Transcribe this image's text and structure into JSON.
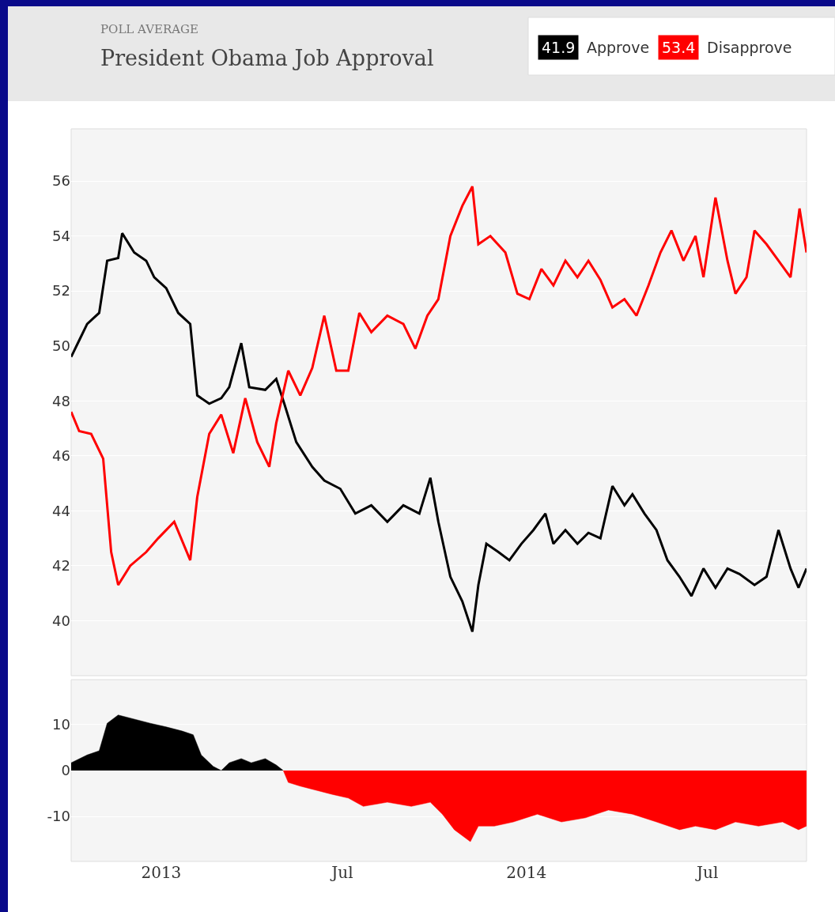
{
  "chart_data": [
    {
      "type": "line",
      "title": "President Obama Job Approval",
      "subtitle": "POLL AVERAGE",
      "annotations": [
        "41.9",
        "53.4"
      ],
      "legend": "top right",
      "grid": "y",
      "tick_labels": "y",
      "xlim": [
        "2012-10-03",
        "2014-10-08"
      ],
      "ylim": [
        38,
        57.9
      ],
      "yticks": [
        40,
        42,
        44,
        46,
        48,
        50,
        52,
        54,
        56
      ],
      "series": [
        {
          "name": "Approve",
          "color": "#000000",
          "x": [
            "2012-10-03",
            "2012-10-11",
            "2012-10-19",
            "2012-10-31",
            "2012-11-08",
            "2012-11-19",
            "2012-11-23",
            "2012-12-05",
            "2012-12-17",
            "2012-12-25",
            "2013-01-06",
            "2013-01-18",
            "2013-01-30",
            "2013-02-06",
            "2013-02-18",
            "2013-03-02",
            "2013-03-10",
            "2013-03-22",
            "2013-03-30",
            "2013-04-15",
            "2013-04-26",
            "2013-05-04",
            "2013-05-16",
            "2013-06-01",
            "2013-06-13",
            "2013-06-29",
            "2013-07-14",
            "2013-07-30",
            "2013-08-15",
            "2013-08-31",
            "2013-09-16",
            "2013-09-27",
            "2013-10-05",
            "2013-10-17",
            "2013-10-29",
            "2013-11-08",
            "2013-11-14",
            "2013-11-22",
            "2013-12-04",
            "2013-12-15",
            "2013-12-27",
            "2014-01-08",
            "2014-01-20",
            "2014-01-28",
            "2014-02-09",
            "2014-02-21",
            "2014-03-04",
            "2014-03-16",
            "2014-03-28",
            "2014-04-09",
            "2014-04-17",
            "2014-04-29",
            "2014-05-11",
            "2014-05-22",
            "2014-06-03",
            "2014-06-15",
            "2014-06-27",
            "2014-07-09",
            "2014-07-21",
            "2014-08-02",
            "2014-08-17",
            "2014-08-29",
            "2014-09-10",
            "2014-09-22",
            "2014-09-30",
            "2014-10-08"
          ],
          "values": [
            49.6,
            50.2,
            50.8,
            51.2,
            53.1,
            53.2,
            54.1,
            53.4,
            53.1,
            52.5,
            52.1,
            51.2,
            50.8,
            48.2,
            47.9,
            48.1,
            48.5,
            50.1,
            48.5,
            48.4,
            48.8,
            47.9,
            46.5,
            45.6,
            45.1,
            44.8,
            43.9,
            44.2,
            43.6,
            44.2,
            43.9,
            45.2,
            43.6,
            41.6,
            40.7,
            39.6,
            41.3,
            42.8,
            42.5,
            42.2,
            42.8,
            43.3,
            43.9,
            42.8,
            43.3,
            42.8,
            43.2,
            43.0,
            44.9,
            44.2,
            44.6,
            43.9,
            43.3,
            42.2,
            41.6,
            40.9,
            41.9,
            41.2,
            41.9,
            41.7,
            41.3,
            41.6,
            43.3,
            41.9,
            41.2,
            41.9
          ]
        },
        {
          "name": "Disapprove",
          "color": "#ff0000",
          "x": [
            "2012-10-03",
            "2012-10-11",
            "2012-10-23",
            "2012-11-04",
            "2012-11-12",
            "2012-11-19",
            "2012-12-01",
            "2012-12-17",
            "2012-12-29",
            "2013-01-14",
            "2013-01-30",
            "2013-02-06",
            "2013-02-18",
            "2013-03-02",
            "2013-03-14",
            "2013-03-26",
            "2013-04-07",
            "2013-04-19",
            "2013-04-26",
            "2013-05-08",
            "2013-05-20",
            "2013-06-01",
            "2013-06-13",
            "2013-06-25",
            "2013-07-07",
            "2013-07-18",
            "2013-07-30",
            "2013-08-15",
            "2013-08-31",
            "2013-09-12",
            "2013-09-24",
            "2013-10-05",
            "2013-10-17",
            "2013-10-29",
            "2013-11-08",
            "2013-11-14",
            "2013-11-26",
            "2013-12-11",
            "2013-12-23",
            "2014-01-04",
            "2014-01-16",
            "2014-01-28",
            "2014-02-09",
            "2014-02-21",
            "2014-03-04",
            "2014-03-16",
            "2014-03-28",
            "2014-04-09",
            "2014-04-21",
            "2014-05-03",
            "2014-05-15",
            "2014-05-26",
            "2014-06-07",
            "2014-06-19",
            "2014-06-27",
            "2014-07-09",
            "2014-07-21",
            "2014-07-29",
            "2014-08-09",
            "2014-08-17",
            "2014-08-29",
            "2014-09-10",
            "2014-09-22",
            "2014-10-01",
            "2014-10-08"
          ],
          "values": [
            47.6,
            46.9,
            46.8,
            45.9,
            42.5,
            41.3,
            42.0,
            42.5,
            43.0,
            43.6,
            42.2,
            44.5,
            46.8,
            47.5,
            46.1,
            48.1,
            46.5,
            45.6,
            47.2,
            49.1,
            48.2,
            49.2,
            51.1,
            49.1,
            49.1,
            51.2,
            50.5,
            51.1,
            50.8,
            49.9,
            51.1,
            51.7,
            54.0,
            55.1,
            55.8,
            53.7,
            54.0,
            53.4,
            51.9,
            51.7,
            52.8,
            52.2,
            53.1,
            52.5,
            53.1,
            52.4,
            51.4,
            51.7,
            51.1,
            52.2,
            53.4,
            54.2,
            53.1,
            54.0,
            52.5,
            55.4,
            53.1,
            51.9,
            52.5,
            54.2,
            53.7,
            53.1,
            52.5,
            55.0,
            53.4
          ]
        }
      ]
    },
    {
      "type": "area",
      "grid": "y",
      "xlim": [
        "2012-10-03",
        "2014-10-08"
      ],
      "ylim": [
        -19.8,
        19.8
      ],
      "yticks": [
        -10,
        0,
        10
      ],
      "xticks": [
        {
          "value": "2013-01-01",
          "label": "2013"
        },
        {
          "value": "2013-07-01",
          "label": "Jul"
        },
        {
          "value": "2014-01-01",
          "label": "2014"
        },
        {
          "value": "2014-07-01",
          "label": "Jul"
        }
      ],
      "series": [
        {
          "color": "#000000",
          "x": [
            "2012-10-03",
            "2012-10-19",
            "2012-10-31",
            "2012-11-08",
            "2012-11-19",
            "2012-12-05",
            "2012-12-21",
            "2013-01-06",
            "2013-01-22",
            "2013-02-02",
            "2013-02-10",
            "2013-02-22",
            "2013-03-02",
            "2013-03-10",
            "2013-03-22",
            "2013-04-01",
            "2013-04-15",
            "2013-04-26",
            "2013-05-03"
          ],
          "values": [
            1.7,
            3.4,
            4.3,
            10.3,
            12.1,
            11.2,
            10.3,
            9.5,
            8.6,
            7.8,
            3.4,
            0.9,
            0,
            1.7,
            2.6,
            1.7,
            2.6,
            1.2,
            0
          ]
        },
        {
          "color": "#ff0000",
          "x": [
            "2013-05-03",
            "2013-05-08",
            "2013-05-20",
            "2013-06-05",
            "2013-06-21",
            "2013-07-07",
            "2013-07-22",
            "2013-08-15",
            "2013-09-08",
            "2013-09-27",
            "2013-10-09",
            "2013-10-21",
            "2013-11-06",
            "2013-11-14",
            "2013-11-30",
            "2013-12-19",
            "2014-01-12",
            "2014-02-05",
            "2014-03-01",
            "2014-03-24",
            "2014-04-17",
            "2014-05-11",
            "2014-06-03",
            "2014-06-19",
            "2014-07-09",
            "2014-07-29",
            "2014-08-21",
            "2014-09-14",
            "2014-09-30",
            "2014-10-08"
          ],
          "values": [
            0,
            -2.6,
            -3.4,
            -4.3,
            -5.2,
            -6.0,
            -7.8,
            -6.9,
            -7.8,
            -6.9,
            -9.5,
            -12.9,
            -15.5,
            -12.1,
            -12.1,
            -11.2,
            -9.5,
            -11.2,
            -10.3,
            -8.6,
            -9.5,
            -11.2,
            -12.9,
            -12.1,
            -12.9,
            -11.2,
            -12.1,
            -11.2,
            -12.9,
            -12.1
          ]
        }
      ]
    }
  ]
}
